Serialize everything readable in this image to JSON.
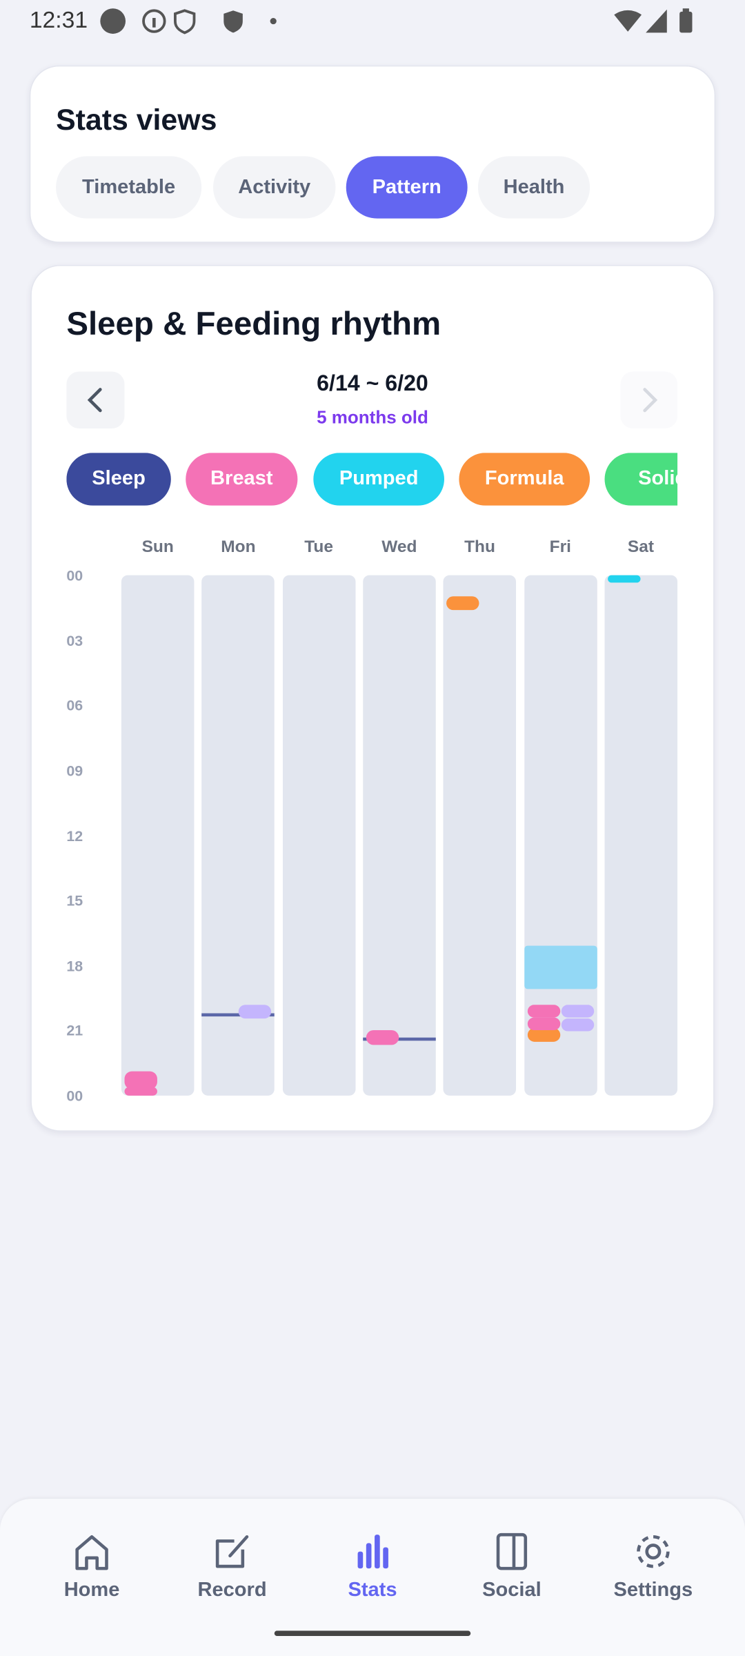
{
  "status_bar": {
    "time": "12:31"
  },
  "stats_views": {
    "title": "Stats views",
    "tabs": [
      "Timetable",
      "Activity",
      "Pattern",
      "Health"
    ],
    "active_tab": 2
  },
  "rhythm": {
    "title": "Sleep & Feeding rhythm",
    "date_range": "6/14 ~ 6/20",
    "age": "5 months old",
    "filters": [
      {
        "label": "Sleep",
        "color": "#3b4a9c"
      },
      {
        "label": "Breast",
        "color": "#f472b6"
      },
      {
        "label": "Pumped",
        "color": "#22d3ee"
      },
      {
        "label": "Formula",
        "color": "#fb923c"
      },
      {
        "label": "Solid",
        "color": "#4ade80"
      }
    ],
    "days": [
      "Sun",
      "Mon",
      "Tue",
      "Wed",
      "Thu",
      "Fri",
      "Sat"
    ],
    "hour_labels": [
      "00",
      "03",
      "06",
      "09",
      "12",
      "15",
      "18",
      "21",
      "00"
    ],
    "hours_span": 24,
    "events": [
      {
        "day": 0,
        "start": 22.9,
        "end": 23.7,
        "color": "#f472b6",
        "lane": "left"
      },
      {
        "day": 0,
        "start": 23.6,
        "end": 24,
        "color": "#f472b6",
        "lane": "left"
      },
      {
        "day": 1,
        "start": 20.3,
        "end": 20.3,
        "color": "#5b67a8",
        "lane": "full"
      },
      {
        "day": 1,
        "start": 19.8,
        "end": 20.45,
        "color": "#c4b5fd",
        "lane": "right"
      },
      {
        "day": 3,
        "start": 21.4,
        "end": 21.4,
        "color": "#5b67a8",
        "lane": "full"
      },
      {
        "day": 3,
        "start": 21,
        "end": 21.65,
        "color": "#f472b6",
        "lane": "left"
      },
      {
        "day": 4,
        "start": 0.97,
        "end": 1.6,
        "color": "#fb923c",
        "lane": "left"
      },
      {
        "day": 5,
        "start": 17.1,
        "end": 19.1,
        "color": "#93d8f5",
        "lane": "full"
      },
      {
        "day": 5,
        "start": 20.9,
        "end": 21.5,
        "color": "#fb923c",
        "lane": "left"
      },
      {
        "day": 5,
        "start": 19.8,
        "end": 20.4,
        "color": "#f472b6",
        "lane": "left"
      },
      {
        "day": 5,
        "start": 20.4,
        "end": 21,
        "color": "#f472b6",
        "lane": "left"
      },
      {
        "day": 5,
        "start": 19.8,
        "end": 20.4,
        "color": "#c4b5fd",
        "lane": "right"
      },
      {
        "day": 5,
        "start": 20.45,
        "end": 21.05,
        "color": "#c4b5fd",
        "lane": "right"
      },
      {
        "day": 6,
        "start": 0,
        "end": 0.35,
        "color": "#22d3ee",
        "lane": "left"
      }
    ]
  },
  "nav": {
    "items": [
      "Home",
      "Record",
      "Stats",
      "Social",
      "Settings"
    ],
    "active": 2
  }
}
